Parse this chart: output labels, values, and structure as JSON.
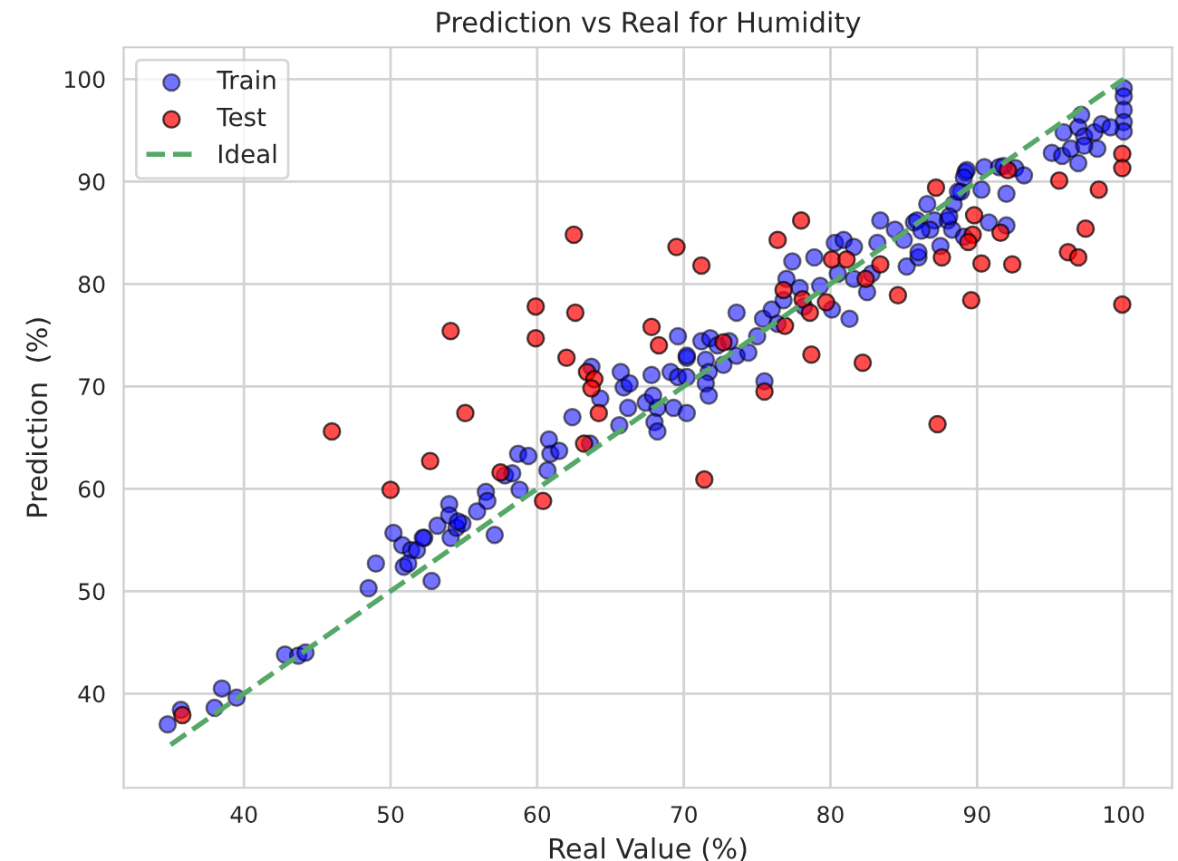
{
  "chart_data": {
    "type": "scatter",
    "title": "Prediction vs Real for Humidity",
    "xlabel": "Real Value (%)",
    "ylabel": "Prediction  (%)",
    "xlim": [
      31.8,
      103.3
    ],
    "ylim": [
      30.8,
      103.1
    ],
    "xticks": [
      40,
      50,
      60,
      70,
      80,
      90,
      100
    ],
    "yticks": [
      40,
      50,
      60,
      70,
      80,
      90,
      100
    ],
    "grid": true,
    "legend": "top left",
    "marker": "circle",
    "series": [
      {
        "name": "Train",
        "color": "#0000ff",
        "x": [
          34.8,
          35.7,
          38.0,
          38.5,
          39.5,
          42.8,
          43.7,
          44.2,
          48.5,
          49.0,
          50.2,
          50.8,
          50.9,
          51.4,
          51.8,
          52.3,
          52.8,
          53.2,
          54.0,
          54.0,
          54.1,
          54.5,
          54.9,
          51.2,
          52.2,
          54.6,
          57.1,
          55.9,
          56.5,
          56.6,
          57.8,
          58.3,
          58.8,
          58.7,
          59.4,
          60.7,
          60.8,
          60.9,
          61.5,
          62.4,
          63.6,
          64.3,
          63.7,
          65.7,
          65.9,
          66.3,
          66.2,
          65.6,
          67.4,
          67.9,
          68.2,
          68.0,
          68.2,
          67.8,
          69.1,
          69.6,
          70.2,
          69.3,
          70.2,
          69.6,
          70.2,
          71.2,
          71.8,
          71.5,
          71.7,
          72.7,
          70.2,
          71.5,
          71.7,
          72.3,
          73.1,
          73.6,
          73.6,
          74.4,
          75.0,
          75.5,
          75.4,
          76.0,
          76.4,
          76.8,
          77.4,
          77.0,
          77.9,
          78.2,
          78.9,
          79.3,
          80.3,
          80.1,
          81.3,
          80.5,
          81.6,
          80.9,
          81.6,
          82.5,
          82.8,
          83.4,
          83.2,
          84.4,
          85.0,
          85.2,
          86.0,
          85.7,
          86.6,
          87.1,
          86.8,
          87.5,
          88.0,
          88.3,
          88.4,
          88.9,
          89.2,
          90.3,
          90.5,
          90.8,
          91.5,
          92.0,
          92.6,
          93.2,
          95.1,
          95.8,
          96.9,
          98.2,
          100,
          100,
          100,
          100,
          100,
          97.1,
          95.9,
          96.9,
          97.3,
          98.0,
          98.5,
          99.1,
          96.4,
          97.3,
          91.8,
          89.3,
          89.1,
          88.7,
          88.1,
          85.9,
          86.2,
          86.0,
          89.1,
          92.0
        ],
        "values": [
          37.0,
          38.4,
          38.6,
          40.5,
          39.6,
          43.8,
          43.7,
          44.0,
          50.3,
          52.7,
          55.7,
          54.5,
          52.4,
          54.0,
          54.0,
          55.2,
          51.0,
          56.4,
          58.5,
          57.4,
          55.2,
          56.2,
          56.6,
          52.7,
          55.2,
          56.8,
          55.5,
          57.8,
          59.7,
          58.8,
          61.3,
          61.5,
          59.9,
          63.4,
          63.2,
          61.8,
          64.8,
          63.4,
          63.7,
          67.0,
          64.4,
          68.8,
          71.9,
          71.4,
          69.9,
          70.3,
          67.9,
          66.2,
          68.4,
          69.1,
          67.9,
          66.5,
          65.6,
          71.1,
          71.4,
          70.9,
          70.9,
          67.9,
          67.4,
          74.9,
          72.8,
          74.4,
          74.7,
          72.6,
          71.4,
          72.1,
          73.0,
          70.3,
          69.1,
          74.0,
          74.4,
          73.0,
          77.2,
          73.3,
          74.9,
          70.5,
          76.6,
          77.5,
          76.1,
          78.4,
          82.2,
          80.5,
          79.6,
          77.8,
          82.6,
          79.8,
          84.0,
          77.5,
          76.6,
          81.0,
          80.5,
          84.3,
          83.6,
          79.2,
          81.0,
          86.2,
          84.0,
          85.3,
          84.3,
          81.7,
          82.6,
          86.0,
          87.8,
          86.2,
          85.3,
          83.7,
          86.2,
          85.3,
          87.8,
          89.0,
          90.9,
          89.2,
          91.4,
          86.0,
          91.4,
          88.8,
          91.3,
          90.6,
          92.8,
          92.5,
          91.8,
          93.2,
          99.1,
          98.3,
          97.0,
          95.8,
          94.9,
          96.5,
          94.8,
          95.3,
          94.4,
          94.8,
          95.6,
          95.3,
          93.2,
          93.5,
          91.5,
          91.1,
          90.4,
          89.0,
          86.6,
          86.2,
          85.2,
          83.1,
          84.6,
          85.7
        ]
      },
      {
        "name": "Test",
        "color": "#ff0000",
        "x": [
          35.8,
          46.0,
          50.0,
          52.7,
          54.1,
          55.1,
          57.5,
          59.9,
          59.9,
          60.4,
          62.0,
          62.5,
          62.6,
          63.2,
          63.4,
          63.9,
          63.7,
          64.2,
          67.8,
          68.3,
          69.5,
          71.2,
          71.4,
          72.7,
          75.5,
          76.8,
          76.9,
          76.4,
          78.0,
          78.1,
          78.6,
          79.7,
          78.7,
          80.1,
          81.1,
          82.4,
          83.4,
          82.2,
          84.6,
          87.3,
          87.2,
          87.6,
          89.6,
          89.7,
          89.4,
          89.8,
          90.3,
          91.6,
          92.1,
          92.4,
          95.6,
          96.2,
          96.9,
          97.4,
          98.3,
          99.9,
          99.9,
          99.9
        ],
        "values": [
          37.9,
          65.6,
          59.9,
          62.7,
          75.4,
          67.4,
          61.6,
          77.8,
          74.7,
          58.8,
          72.8,
          84.8,
          77.2,
          64.4,
          71.4,
          70.7,
          69.8,
          67.4,
          75.8,
          74.0,
          83.6,
          81.8,
          60.9,
          74.3,
          69.5,
          79.4,
          75.9,
          84.3,
          86.2,
          78.5,
          77.2,
          78.2,
          73.1,
          82.4,
          82.4,
          80.5,
          81.9,
          72.3,
          78.9,
          66.3,
          89.4,
          82.6,
          78.4,
          84.8,
          84.1,
          86.7,
          82.0,
          85.0,
          91.1,
          81.9,
          90.1,
          83.1,
          82.6,
          85.4,
          89.2,
          92.7,
          91.3,
          78.0
        ]
      },
      {
        "name": "Ideal",
        "color": "#55a868",
        "type": "line",
        "line_style": "dashed",
        "marker": "none",
        "x": [
          35,
          100
        ],
        "values": [
          35,
          100
        ]
      }
    ]
  }
}
